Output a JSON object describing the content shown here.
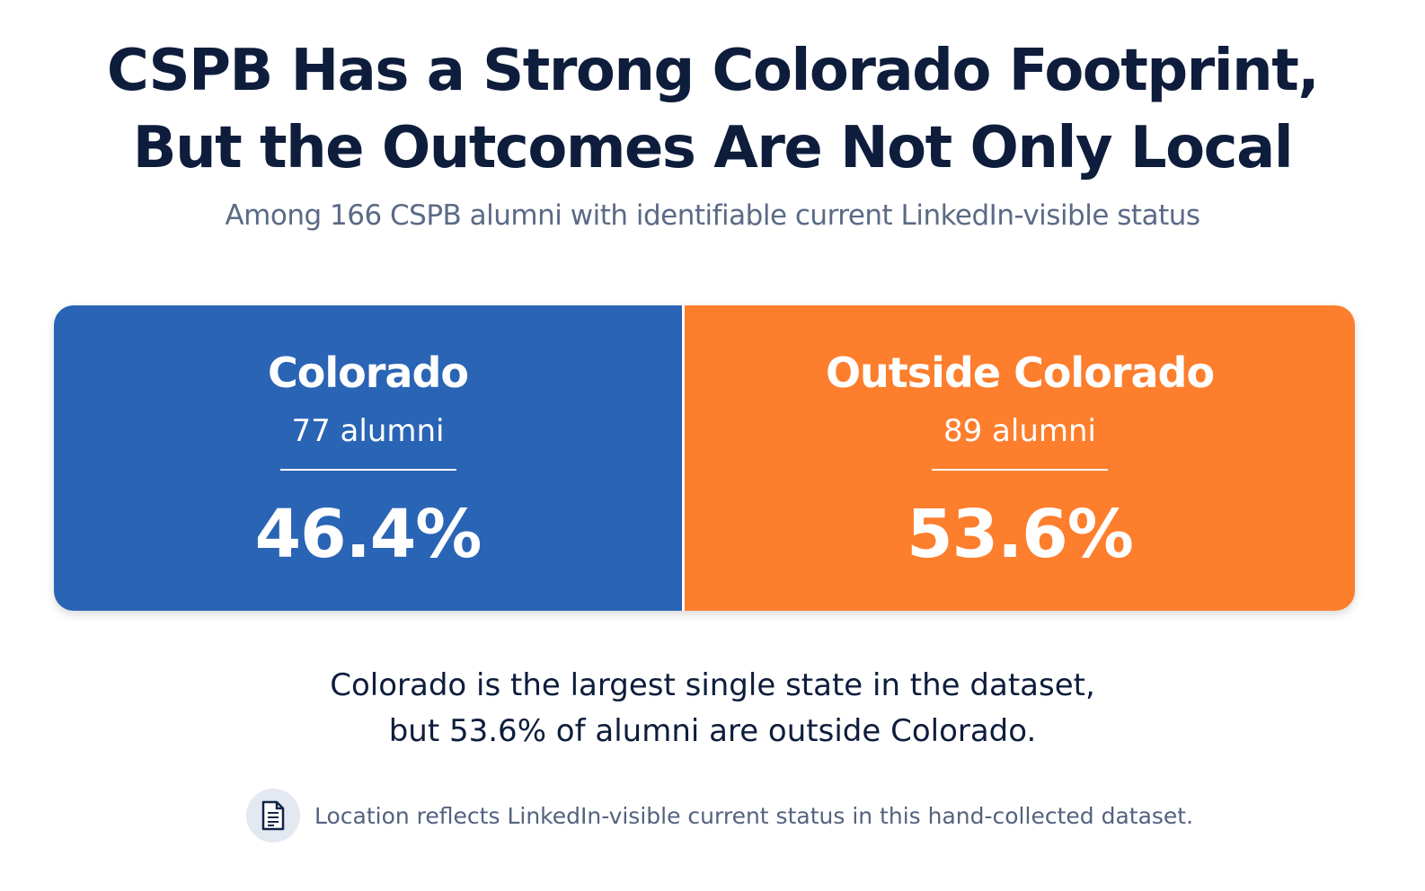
{
  "title_line1": "CSPB Has a Strong Colorado Footprint,",
  "title_line2": "But the Outcomes Are Not Only Local",
  "subtitle": "Among 166 CSPB alumni with identifiable current LinkedIn-visible status",
  "chart_data": {
    "type": "bar",
    "orientation": "horizontal-stacked-100",
    "categories": [
      "Colorado",
      "Outside Colorado"
    ],
    "counts": [
      77,
      89
    ],
    "count_labels": [
      "77 alumni",
      "89 alumni"
    ],
    "values": [
      46.4,
      53.6
    ],
    "value_labels": [
      "46.4%",
      "53.6%"
    ],
    "colors": [
      "#2a64b5",
      "#fd7e2c"
    ],
    "total": 166
  },
  "takeaway_line1": "Colorado is the largest single state in the dataset,",
  "takeaway_line2": "but 53.6% of alumni are outside Colorado.",
  "note": {
    "icon": "document-icon",
    "text": "Location reflects LinkedIn-visible current status in this hand-collected dataset."
  }
}
